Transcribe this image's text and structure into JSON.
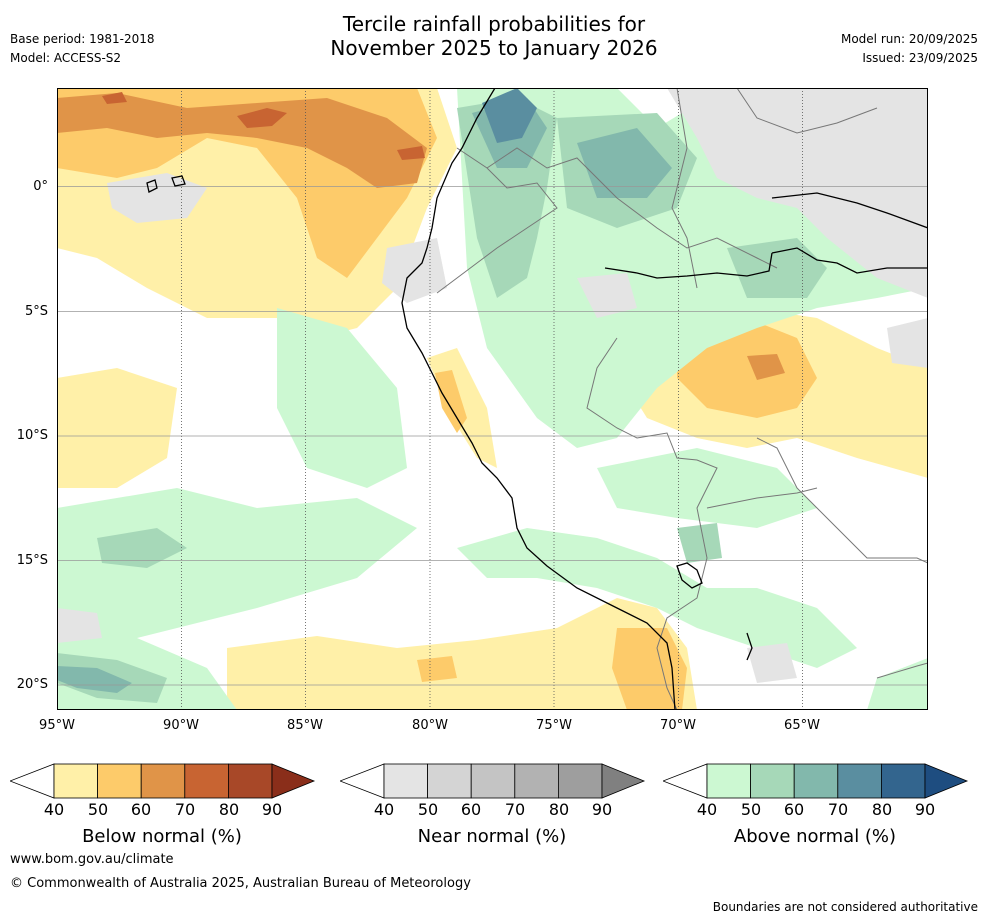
{
  "title": {
    "line1": "Tercile rainfall probabilities for",
    "line2": "November 2025 to January 2026"
  },
  "meta": {
    "base_period": "Base period: 1981-2018",
    "model": "Model: ACCESS-S2",
    "model_run": "Model run: 20/09/2025",
    "issued": "Issued: 23/09/2025"
  },
  "map": {
    "lat_labels": [
      "0°",
      "5°S",
      "10°S",
      "15°S",
      "20°S"
    ],
    "lon_labels": [
      "95°W",
      "90°W",
      "85°W",
      "80°W",
      "75°W",
      "70°W",
      "65°W"
    ]
  },
  "colorbars": [
    {
      "label": "Below normal (%)",
      "colors": [
        "#fff0a8",
        "#fdcb6a",
        "#e09448",
        "#c86432",
        "#a84828"
      ],
      "extend": "#8a2e1a",
      "ticks": [
        "40",
        "50",
        "60",
        "70",
        "80",
        "90"
      ]
    },
    {
      "label": "Near normal (%)",
      "colors": [
        "#e4e4e4",
        "#d4d4d4",
        "#c4c4c4",
        "#b2b2b2",
        "#9e9e9e"
      ],
      "extend": "#808080",
      "ticks": [
        "40",
        "50",
        "60",
        "70",
        "80",
        "90"
      ]
    },
    {
      "label": "Above normal (%)",
      "colors": [
        "#ccf8d2",
        "#a6d8b8",
        "#82b8ac",
        "#5a8ea0",
        "#33658e"
      ],
      "extend": "#1e4d80",
      "ticks": [
        "40",
        "50",
        "60",
        "70",
        "80",
        "90"
      ]
    }
  ],
  "footer": {
    "url": "www.bom.gov.au/climate",
    "copyright": "© Commonwealth of Australia 2025, Australian Bureau of Meteorology",
    "disclaimer": "Boundaries are not considered authoritative"
  }
}
